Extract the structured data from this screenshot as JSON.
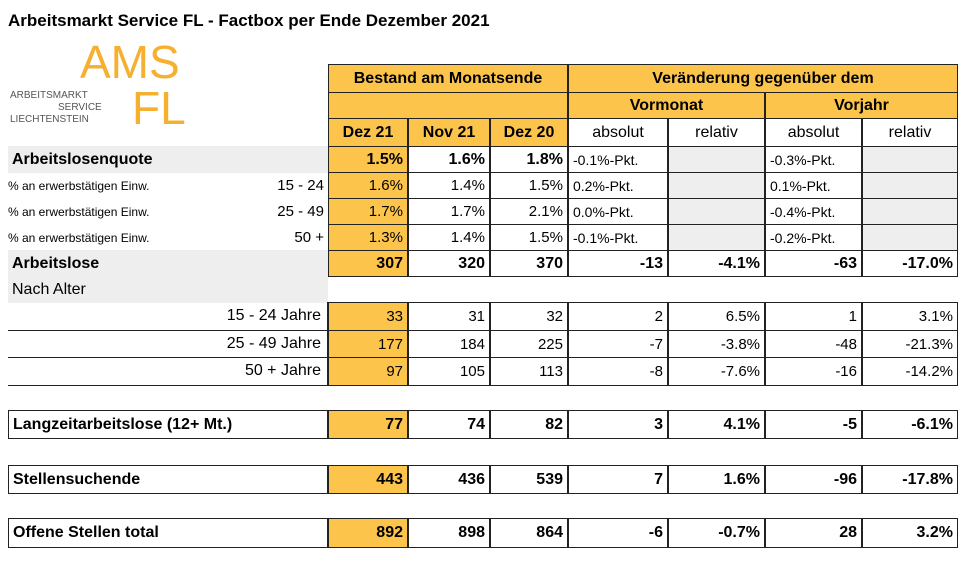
{
  "header": {
    "title": "Arbeitsmarkt Service FL - Factbox per Ende Dezember 2021",
    "logo": {
      "big": "AMS",
      "big2": "FL",
      "lines": [
        "ARBEITSMARKT",
        "SERVICE",
        "LIECHTENSTEIN"
      ]
    }
  },
  "table": {
    "group_headers": [
      "Bestand am Monatsende",
      "Veränderung gegenüber dem"
    ],
    "sub_headers": [
      "Vormonat",
      "Vorjahr"
    ],
    "columns": [
      "Dez 21",
      "Nov 21",
      "Dez 20",
      "absolut",
      "relativ",
      "absolut",
      "relativ"
    ],
    "rows": [
      {
        "label": "Arbeitslosenquote",
        "cells": [
          "1.5%",
          "1.6%",
          "1.8%",
          "-0.1%-Pkt.",
          null,
          "-0.3%-Pkt.",
          null
        ]
      },
      {
        "label": "% an erwerbstätigen Einw.",
        "range": "15 - 24",
        "cells": [
          "1.6%",
          "1.4%",
          "1.5%",
          "0.2%-Pkt.",
          null,
          "0.1%-Pkt.",
          null
        ]
      },
      {
        "label": "% an erwerbstätigen Einw.",
        "range": "25 - 49",
        "cells": [
          "1.7%",
          "1.7%",
          "2.1%",
          "0.0%-Pkt.",
          null,
          "-0.4%-Pkt.",
          null
        ]
      },
      {
        "label": "% an erwerbstätigen Einw.",
        "range": "50 +",
        "cells": [
          "1.3%",
          "1.4%",
          "1.5%",
          "-0.1%-Pkt.",
          null,
          "-0.2%-Pkt.",
          null
        ]
      },
      {
        "label": "Arbeitslose",
        "cells": [
          "307",
          "320",
          "370",
          "-13",
          "-4.1%",
          "-63",
          "-17.0%"
        ]
      },
      {
        "label": "Nach Alter"
      },
      {
        "label": "15 - 24 Jahre",
        "cells": [
          "33",
          "31",
          "32",
          "2",
          "6.5%",
          "1",
          "3.1%"
        ]
      },
      {
        "label": "25 - 49 Jahre",
        "cells": [
          "177",
          "184",
          "225",
          "-7",
          "-3.8%",
          "-48",
          "-21.3%"
        ]
      },
      {
        "label": "50 + Jahre",
        "cells": [
          "97",
          "105",
          "113",
          "-8",
          "-7.6%",
          "-16",
          "-14.2%"
        ]
      },
      {
        "label": "Langzeitarbeitslose (12+ Mt.)",
        "cells": [
          "77",
          "74",
          "82",
          "3",
          "4.1%",
          "-5",
          "-6.1%"
        ]
      },
      {
        "label": "Stellensuchende",
        "cells": [
          "443",
          "436",
          "539",
          "7",
          "1.6%",
          "-96",
          "-17.8%"
        ]
      },
      {
        "label": "Offene Stellen total",
        "cells": [
          "892",
          "898",
          "864",
          "-6",
          "-0.7%",
          "28",
          "3.2%"
        ]
      }
    ]
  }
}
